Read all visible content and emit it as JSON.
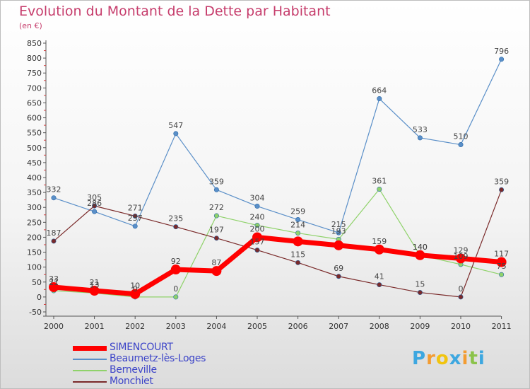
{
  "chart_data": {
    "type": "line",
    "title": "Evolution du Montant de la Dette par Habitant",
    "subtitle": "(en €)",
    "categories": [
      "2000",
      "2001",
      "2002",
      "2003",
      "2004",
      "2005",
      "2006",
      "2007",
      "2008",
      "2009",
      "2010",
      "2011"
    ],
    "ylim": [
      -50,
      850
    ],
    "yticks": [
      -50,
      0,
      50,
      100,
      150,
      200,
      250,
      300,
      350,
      400,
      450,
      500,
      550,
      600,
      650,
      700,
      750,
      800,
      850
    ],
    "grid": false,
    "legend_position": "bottom-left",
    "series": [
      {
        "name": "SIMENCOURT",
        "color": "#ff0000",
        "values": [
          33,
          21,
          10,
          92,
          87,
          200,
          186,
          173,
          159,
          140,
          129,
          117
        ],
        "labels": [
          "33",
          "21",
          "10",
          "92",
          "87",
          "200",
          "",
          "",
          "159",
          "140",
          "129",
          "117"
        ]
      },
      {
        "name": "Beaumetz-lès-Loges",
        "color": "#5a8fc8",
        "values": [
          332,
          286,
          237,
          547,
          359,
          304,
          259,
          215,
          664,
          533,
          510,
          796
        ],
        "labels": [
          "332",
          "286",
          "237",
          "547",
          "359",
          "304",
          "259",
          "215",
          "664",
          "533",
          "510",
          "796"
        ]
      },
      {
        "name": "Berneville",
        "color": "#8fd26a",
        "values": [
          21,
          13,
          0,
          0,
          272,
          240,
          214,
          193,
          361,
          140,
          109,
          75
        ],
        "labels": [
          "21",
          "13",
          "0",
          "0",
          "272",
          "240",
          "214",
          "193",
          "361",
          "140",
          "109",
          "75"
        ]
      },
      {
        "name": "Monchiet",
        "color": "#7a2a2a",
        "values": [
          187,
          305,
          271,
          235,
          197,
          157,
          115,
          69,
          41,
          15,
          0,
          359
        ],
        "labels": [
          "187",
          "305",
          "271",
          "235",
          "197",
          "157",
          "115",
          "69",
          "41",
          "15",
          "0",
          "359"
        ]
      }
    ]
  },
  "logo": {
    "letters": [
      "P",
      "r",
      "o",
      "x",
      "i",
      "t",
      "i"
    ],
    "colors": [
      "#3da7e0",
      "#f39c32",
      "#f1c40f",
      "#3da7e0",
      "#f39c32",
      "#8bc34a",
      "#3da7e0"
    ]
  }
}
